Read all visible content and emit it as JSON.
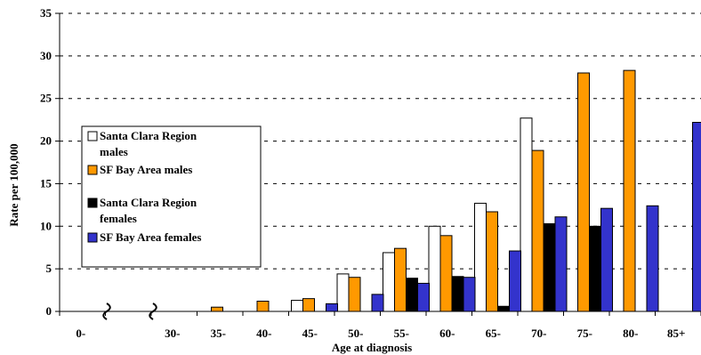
{
  "chart_data": {
    "type": "bar",
    "title": "",
    "xlabel": "Age at diagnosis",
    "ylabel": "Rate per 100,000",
    "ylim": [
      0,
      35
    ],
    "yticks": [
      "0",
      "5",
      "10",
      "15",
      "20",
      "25",
      "30",
      "35"
    ],
    "grid": "horizontal dashed",
    "legend_position": "left",
    "axis_break_markers": 2,
    "categories": [
      "0-",
      "",
      "30-",
      "35-",
      "40-",
      "45-",
      "50-",
      "55-",
      "60-",
      "65-",
      "70-",
      "75-",
      "80-",
      "85+"
    ],
    "series": [
      {
        "name": "Santa Clara Region males",
        "color": "#ffffff",
        "values": [
          0,
          0,
          0,
          0,
          0,
          1.3,
          4.4,
          6.9,
          10.0,
          12.7,
          22.7,
          0,
          0,
          0
        ]
      },
      {
        "name": "SF Bay Area males",
        "color": "#ff9900",
        "values": [
          0,
          0,
          0,
          0.5,
          1.2,
          1.5,
          4.0,
          7.4,
          8.9,
          11.7,
          18.9,
          28.0,
          28.3,
          0
        ]
      },
      {
        "name": "Santa Clara Region females",
        "color": "#000000",
        "values": [
          0,
          0,
          0,
          0,
          0,
          0,
          0,
          3.9,
          4.1,
          0.6,
          10.3,
          10.0,
          0,
          0
        ]
      },
      {
        "name": "SF Bay Area females",
        "color": "#3333cc",
        "values": [
          0,
          0,
          0,
          0,
          0,
          0.9,
          2.0,
          3.3,
          4.0,
          7.1,
          11.1,
          12.1,
          12.4,
          22.2
        ]
      }
    ]
  }
}
